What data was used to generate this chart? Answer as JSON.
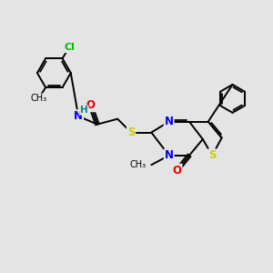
{
  "background_color": "#e4e4e4",
  "bond_color": "#000000",
  "atom_colors": {
    "N": "#0000ee",
    "O": "#ee0000",
    "S": "#cccc00",
    "Cl": "#00bb00",
    "H": "#008888",
    "C": "#000000"
  },
  "figsize": [
    3.0,
    3.0
  ],
  "dpi": 100
}
